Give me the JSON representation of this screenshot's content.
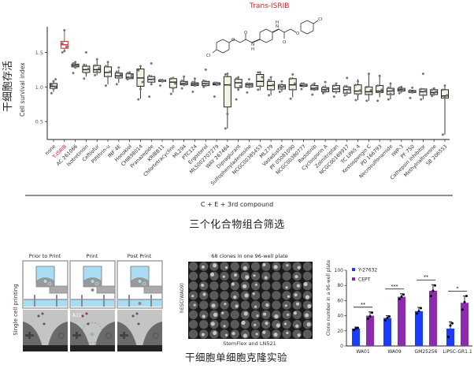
{
  "figure": {
    "top_caption": "三个化合物组合筛选",
    "bottom_caption": "干细胞单细胞克隆实验",
    "trans_isrib_label": "Trans-ISRIB",
    "structure_atoms": {
      "cl_left": "Cl",
      "cl_right": "Cl",
      "o": "O",
      "n": "N",
      "h": "H"
    }
  },
  "chart_data": [
    {
      "type": "box",
      "title": "",
      "ylabel": "Cell survival index",
      "ylabel_cn": "干细胞存活",
      "xlabel": "C + E + 3rd compound",
      "ylim": [
        0.24,
        1.87
      ],
      "yticks": [
        0.5,
        1.0,
        1.5
      ],
      "ytick_labels": [
        "0.5",
        "1.0",
        "1.5"
      ],
      "highlight": {
        "category": "T-ISRIB",
        "color": "#e02020"
      },
      "box_fill": "#f3f3e4",
      "point_color": "#777777",
      "categories": [
        "none",
        "T-ISRIB",
        "AC 261066",
        "Isotretinoin",
        "Ceftiofur",
        "Pifithrin-u",
        "INF 4E",
        "Honokiol",
        "CHIR98014",
        "Pranazepide",
        "KRIBB11",
        "Chlortetracycline",
        "ML294",
        "PTC124",
        "Ergosterol",
        "MLS002707279",
        "WAY 267464",
        "Dipraglurant",
        "Sulfophenyladenosine",
        "NCGC00385453",
        "ML279",
        "Vadadustat",
        "PF 05081090",
        "NCGC00380777",
        "Radotinib",
        "Cyclosporin A",
        "Zolmitriptan",
        "NCGC00169917",
        "TC LPAS 4",
        "Xestospongin C",
        "PD 166793",
        "Necrosulfonamide",
        "IWP-3",
        "PF 750",
        "Cathepsin inhibitor",
        "Methylnaltrexone",
        "SB 206553"
      ],
      "boxes": [
        {
          "min": 0.93,
          "q1": 0.98,
          "median": 1.01,
          "q3": 1.05,
          "max": 1.1,
          "points": [
            0.91,
            0.97,
            1.0,
            1.03,
            1.08,
            1.11
          ]
        },
        {
          "min": 1.52,
          "q1": 1.56,
          "median": 1.61,
          "q3": 1.66,
          "max": 1.82,
          "points": [
            1.5,
            1.52,
            1.58,
            1.63,
            1.82
          ]
        },
        {
          "min": 1.27,
          "q1": 1.29,
          "median": 1.31,
          "q3": 1.33,
          "max": 1.36,
          "points": [
            1.2,
            1.28,
            1.31,
            1.34,
            1.36
          ]
        },
        {
          "min": 1.15,
          "q1": 1.21,
          "median": 1.25,
          "q3": 1.3,
          "max": 1.33,
          "points": [
            1.12,
            1.2,
            1.26,
            1.32,
            1.5
          ]
        },
        {
          "min": 1.17,
          "q1": 1.21,
          "median": 1.25,
          "q3": 1.31,
          "max": 1.4,
          "points": [
            1.17,
            1.22,
            1.27,
            1.31,
            1.4
          ]
        },
        {
          "min": 1.04,
          "q1": 1.15,
          "median": 1.21,
          "q3": 1.29,
          "max": 1.35,
          "points": [
            1.02,
            1.15,
            1.22,
            1.3,
            1.36
          ]
        },
        {
          "min": 1.06,
          "q1": 1.13,
          "median": 1.16,
          "q3": 1.2,
          "max": 1.25,
          "points": [
            1.04,
            1.13,
            1.18,
            1.22,
            1.28
          ]
        },
        {
          "min": 1.11,
          "q1": 1.12,
          "median": 1.14,
          "q3": 1.19,
          "max": 1.21,
          "points": [
            1.11,
            1.13,
            1.17,
            1.2,
            1.21
          ]
        },
        {
          "min": 0.83,
          "q1": 1.01,
          "median": 1.13,
          "q3": 1.26,
          "max": 1.29,
          "points": [
            0.82,
            0.97,
            1.07,
            1.24,
            1.3
          ]
        },
        {
          "min": 1.05,
          "q1": 1.07,
          "median": 1.11,
          "q3": 1.15,
          "max": 1.17,
          "points": [
            0.86,
            1.04,
            1.11,
            1.16,
            1.34
          ]
        },
        {
          "min": 1.08,
          "q1": 1.08,
          "median": 1.09,
          "q3": 1.1,
          "max": 1.1,
          "points": [
            1.02,
            1.08,
            1.09,
            1.1,
            1.1
          ]
        },
        {
          "min": 0.92,
          "q1": 0.99,
          "median": 1.07,
          "q3": 1.12,
          "max": 1.13,
          "points": [
            0.9,
            0.98,
            1.05,
            1.12,
            1.13
          ]
        },
        {
          "min": 1.01,
          "q1": 1.03,
          "median": 1.05,
          "q3": 1.08,
          "max": 1.14,
          "points": [
            0.98,
            1.03,
            1.06,
            1.09,
            1.15
          ]
        },
        {
          "min": 1.02,
          "q1": 1.02,
          "median": 1.04,
          "q3": 1.06,
          "max": 1.1,
          "points": [
            0.93,
            1.02,
            1.04,
            1.07,
            1.12
          ]
        },
        {
          "min": 1.01,
          "q1": 1.02,
          "median": 1.05,
          "q3": 1.08,
          "max": 1.1,
          "points": [
            1.0,
            1.02,
            1.05,
            1.09,
            1.25
          ]
        },
        {
          "min": 1.03,
          "q1": 1.03,
          "median": 1.04,
          "q3": 1.06,
          "max": 1.06,
          "points": [
            0.86,
            1.03,
            1.04,
            1.06,
            1.06
          ]
        },
        {
          "min": 0.4,
          "q1": 0.71,
          "median": 1.03,
          "q3": 1.15,
          "max": 1.18,
          "points": [
            0.4,
            0.61,
            1.03,
            1.18,
            1.19
          ]
        },
        {
          "min": 0.96,
          "q1": 0.99,
          "median": 1.06,
          "q3": 1.11,
          "max": 1.13,
          "points": [
            0.82,
            0.96,
            1.01,
            1.12,
            1.14
          ]
        },
        {
          "min": 0.98,
          "q1": 1.0,
          "median": 1.03,
          "q3": 1.05,
          "max": 1.06,
          "points": [
            0.92,
            1.0,
            1.03,
            1.05,
            1.11
          ]
        },
        {
          "min": 0.95,
          "q1": 1.01,
          "median": 1.08,
          "q3": 1.18,
          "max": 1.21,
          "points": [
            0.96,
            1.01,
            1.14,
            1.21,
            1.21
          ]
        },
        {
          "min": 0.88,
          "q1": 0.96,
          "median": 1.02,
          "q3": 1.08,
          "max": 1.14,
          "points": [
            0.88,
            0.96,
            1.03,
            1.1,
            1.14
          ]
        },
        {
          "min": 0.93,
          "q1": 0.97,
          "median": 1.0,
          "q3": 1.03,
          "max": 1.05,
          "points": [
            0.93,
            0.97,
            1.01,
            1.03,
            1.08
          ]
        },
        {
          "min": 0.85,
          "q1": 0.96,
          "median": 1.03,
          "q3": 1.12,
          "max": 1.14,
          "points": [
            0.83,
            0.96,
            1.05,
            1.12,
            1.18
          ]
        },
        {
          "min": 1.0,
          "q1": 1.01,
          "median": 1.02,
          "q3": 1.04,
          "max": 1.05,
          "points": [
            0.97,
            1.01,
            1.03,
            1.05,
            1.05
          ]
        },
        {
          "min": 0.95,
          "q1": 0.96,
          "median": 0.98,
          "q3": 1.02,
          "max": 1.05,
          "points": [
            0.89,
            0.96,
            0.99,
            1.03,
            1.05
          ]
        },
        {
          "min": 0.91,
          "q1": 0.93,
          "median": 0.96,
          "q3": 0.99,
          "max": 1.03,
          "points": [
            0.91,
            0.94,
            0.97,
            1.0,
            1.07
          ]
        },
        {
          "min": 0.9,
          "q1": 0.93,
          "median": 0.97,
          "q3": 1.02,
          "max": 1.05,
          "points": [
            0.86,
            0.93,
            0.98,
            1.02,
            1.05
          ]
        },
        {
          "min": 0.88,
          "q1": 0.91,
          "median": 0.96,
          "q3": 1.0,
          "max": 1.03,
          "points": [
            0.88,
            0.92,
            0.97,
            1.01,
            1.13
          ]
        },
        {
          "min": 0.81,
          "q1": 0.9,
          "median": 0.94,
          "q3": 1.03,
          "max": 1.11,
          "points": [
            0.81,
            0.89,
            0.95,
            1.03,
            1.08
          ]
        },
        {
          "min": 0.8,
          "q1": 0.89,
          "median": 0.93,
          "q3": 1.0,
          "max": 1.19,
          "points": [
            0.8,
            0.89,
            0.95,
            1.0,
            1.19
          ]
        },
        {
          "min": 0.85,
          "q1": 0.92,
          "median": 0.94,
          "q3": 1.02,
          "max": 1.16,
          "points": [
            0.8,
            0.92,
            0.96,
            1.02,
            1.16
          ]
        },
        {
          "min": 0.82,
          "q1": 0.89,
          "median": 0.94,
          "q3": 0.98,
          "max": 1.05,
          "points": [
            0.82,
            0.9,
            0.95,
            0.99,
            1.05
          ]
        },
        {
          "min": 0.91,
          "q1": 0.94,
          "median": 0.96,
          "q3": 0.98,
          "max": 1.0,
          "points": [
            0.91,
            0.94,
            0.97,
            0.99,
            1.0
          ]
        },
        {
          "min": 0.91,
          "q1": 0.92,
          "median": 0.94,
          "q3": 0.95,
          "max": 0.95,
          "points": [
            0.84,
            0.92,
            0.94,
            0.95,
            0.99
          ]
        },
        {
          "min": 0.82,
          "q1": 0.88,
          "median": 0.93,
          "q3": 0.97,
          "max": 0.98,
          "points": [
            0.82,
            0.88,
            0.94,
            0.97,
            1.19
          ]
        },
        {
          "min": 0.87,
          "q1": 0.89,
          "median": 0.92,
          "q3": 0.96,
          "max": 0.98,
          "points": [
            0.87,
            0.9,
            0.93,
            0.96,
            0.98
          ]
        },
        {
          "min": 0.31,
          "q1": 0.84,
          "median": 0.87,
          "q3": 0.96,
          "max": 1.02,
          "points": [
            0.31,
            0.85,
            0.88,
            0.96,
            1.02
          ]
        }
      ]
    },
    {
      "type": "bar",
      "title": "",
      "ylabel": "Clone number in a 96-well plate",
      "xlabel": "",
      "ylim": [
        0,
        100
      ],
      "yticks": [
        0,
        20,
        40,
        60,
        80,
        100
      ],
      "ytick_labels": [
        "0",
        "20",
        "40",
        "60",
        "80",
        "100"
      ],
      "categories": [
        "WA01",
        "WA09",
        "GM25256",
        "LiPSC-GR1.1"
      ],
      "legend_position": "top-left",
      "series": [
        {
          "name": "Y-27632",
          "color": "#1a3cff",
          "values": [
            23,
            37,
            46,
            23
          ],
          "errors": [
            2,
            3,
            5,
            9
          ],
          "points": [
            [
              21,
              23,
              24
            ],
            [
              34,
              37,
              39
            ],
            [
              43,
              46,
              50
            ],
            [
              12,
              27,
              30
            ]
          ]
        },
        {
          "name": "CEPT",
          "color": "#8a2bb0",
          "values": [
            40,
            65,
            73,
            57
          ],
          "errors": [
            5,
            4,
            8,
            9
          ],
          "points": [
            [
              36,
              39,
              44
            ],
            [
              62,
              65,
              68
            ],
            [
              66,
              73,
              80
            ],
            [
              48,
              58,
              66
            ]
          ]
        }
      ],
      "significance": [
        "**",
        "***",
        "**",
        "*"
      ]
    }
  ],
  "printing": {
    "ylabel": "Single cell printing",
    "stages": [
      "Prior to Print",
      "Print",
      "Post Print"
    ],
    "well_label": "A11",
    "colors": {
      "liquid": "#a8dcf5",
      "frame": "#8a8a8a",
      "micro_bg": "#c4c4c4"
    }
  },
  "plate": {
    "title": "68 clones in one 96-well plate",
    "ylabel": "hESC(WA09)",
    "xlabel": "StemFlex and LN521",
    "rows": 8,
    "cols": 12,
    "clone_wells": [
      1,
      2,
      3,
      5,
      7,
      8,
      9,
      10,
      14,
      15,
      16,
      17,
      18,
      19,
      22,
      25,
      28,
      29,
      30,
      33,
      34,
      35,
      36,
      37,
      40,
      41,
      42,
      45,
      46,
      47,
      48,
      50,
      51,
      52,
      54,
      55,
      57,
      58,
      59,
      61,
      62,
      63,
      65,
      66,
      67,
      68,
      69,
      70,
      71,
      74,
      75,
      77,
      78,
      79,
      80,
      81,
      82,
      83,
      85,
      86,
      87,
      88,
      89,
      90,
      91,
      92,
      93,
      94
    ]
  }
}
